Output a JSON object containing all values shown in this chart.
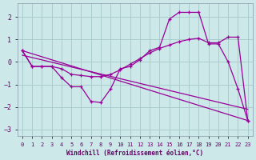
{
  "xlabel": "Windchill (Refroidissement éolien,°C)",
  "bg_color": "#cce8e8",
  "grid_color": "#aacccc",
  "line_color": "#990099",
  "xlim_min": -0.5,
  "xlim_max": 23.5,
  "ylim_min": -3.3,
  "ylim_max": 2.6,
  "xticks": [
    0,
    1,
    2,
    3,
    4,
    5,
    6,
    7,
    8,
    9,
    10,
    11,
    12,
    13,
    14,
    15,
    16,
    17,
    18,
    19,
    20,
    21,
    22,
    23
  ],
  "yticks": [
    -3,
    -2,
    -1,
    0,
    1,
    2
  ],
  "line1_x": [
    0,
    1,
    2,
    3,
    4,
    5,
    6,
    7,
    8,
    9,
    10,
    11,
    12,
    13,
    14,
    15,
    16,
    17,
    18,
    19,
    20,
    21,
    22,
    23
  ],
  "line1_y": [
    0.5,
    -0.2,
    -0.2,
    -0.2,
    -0.7,
    -1.1,
    -1.1,
    -1.75,
    -1.8,
    -1.2,
    -0.3,
    -0.2,
    0.1,
    0.5,
    0.65,
    1.9,
    2.2,
    2.2,
    2.2,
    0.8,
    0.8,
    0.0,
    -1.2,
    -2.6
  ],
  "line2_x": [
    0,
    1,
    2,
    3,
    4,
    5,
    6,
    7,
    8,
    9,
    10,
    11,
    12,
    13,
    14,
    15,
    16,
    17,
    18,
    19,
    20,
    21,
    22,
    23
  ],
  "line2_y": [
    0.5,
    -0.2,
    -0.2,
    -0.2,
    -0.3,
    -0.55,
    -0.6,
    -0.65,
    -0.65,
    -0.55,
    -0.35,
    -0.1,
    0.15,
    0.4,
    0.6,
    0.75,
    0.9,
    1.0,
    1.05,
    0.85,
    0.85,
    1.1,
    1.1,
    -2.6
  ],
  "line3_x": [
    0,
    23
  ],
  "line3_y": [
    0.5,
    -2.6
  ],
  "line4_x": [
    0,
    23
  ],
  "line4_y": [
    0.3,
    -2.1
  ]
}
